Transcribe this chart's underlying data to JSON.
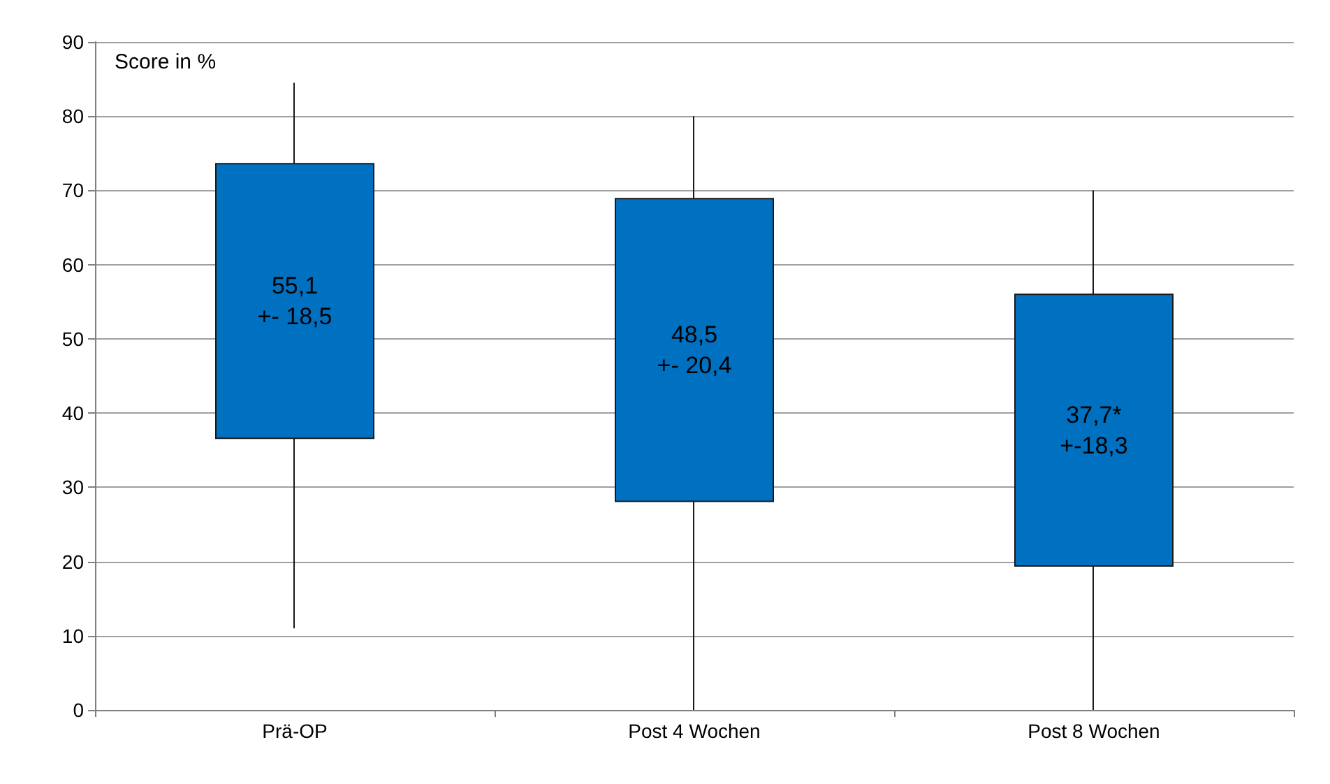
{
  "chart_data": {
    "type": "candlestick",
    "ylabel": "Score in %",
    "categories": [
      "Prä-OP",
      "Post 4 Wochen",
      "Post 8 Wochen"
    ],
    "ohlc": [
      [
        36.6,
        84.5,
        11,
        73.6
      ],
      [
        28.1,
        80,
        0,
        68.9
      ],
      [
        19.4,
        70,
        0,
        56.0
      ]
    ],
    "color": "#0070c0",
    "ylim": [
      0,
      90
    ],
    "yticks": [
      0,
      10,
      20,
      30,
      40,
      50,
      60,
      70,
      80,
      90
    ],
    "grid": "y",
    "annotations": [
      "55,1\n+- 18,5",
      "48,5\n+- 20,4",
      "37,7*\n+-18,3"
    ]
  }
}
